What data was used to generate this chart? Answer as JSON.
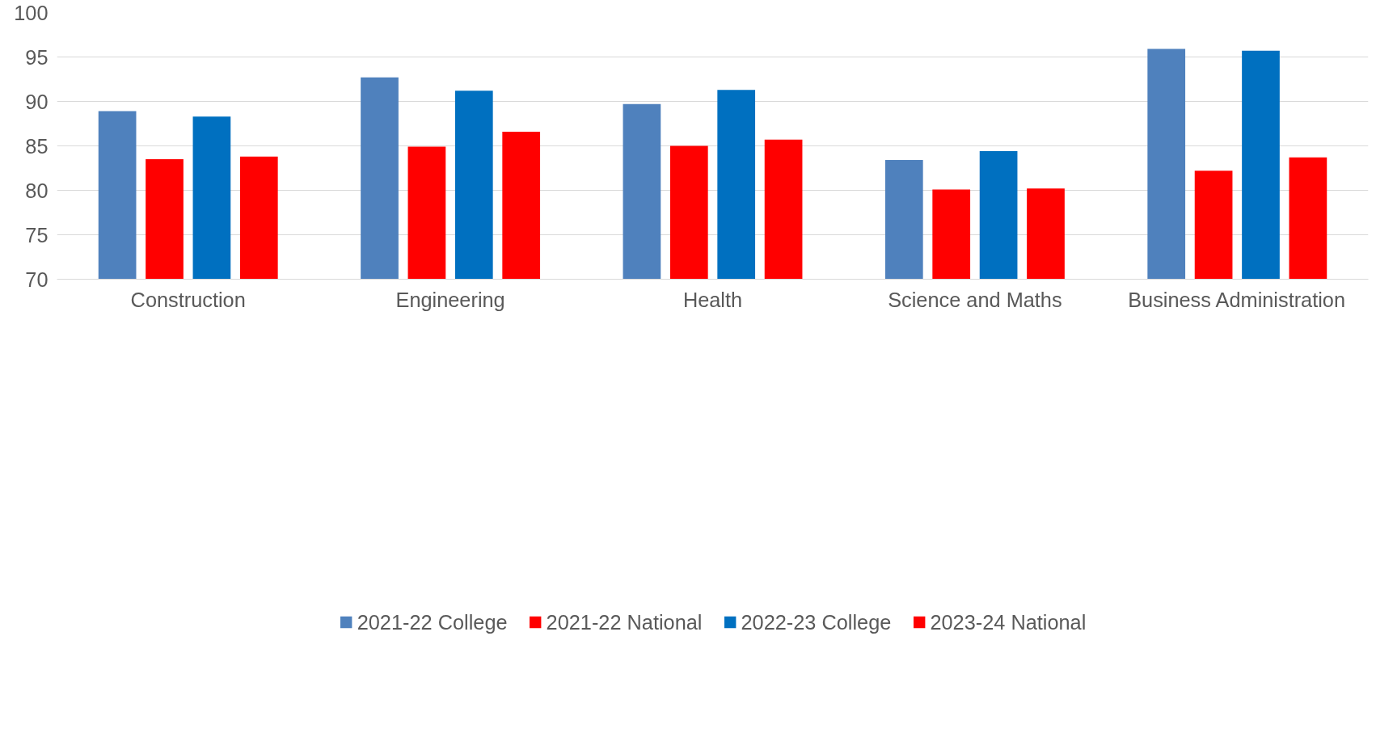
{
  "chart_data": {
    "type": "bar",
    "categories": [
      "Construction",
      "Engineering",
      "Health",
      "Science and Maths",
      "Business Administration"
    ],
    "series": [
      {
        "name": "2021-22 College",
        "color": "#4f81bd",
        "values": [
          88.9,
          92.7,
          89.7,
          83.4,
          95.9
        ]
      },
      {
        "name": "2021-22 National",
        "color": "#ff0000",
        "values": [
          83.5,
          84.9,
          85.0,
          80.1,
          82.2
        ]
      },
      {
        "name": "2022-23 College",
        "color": "#0070c0",
        "values": [
          88.3,
          91.2,
          91.3,
          84.4,
          95.7
        ]
      },
      {
        "name": "2023-24 National",
        "color": "#ff0000",
        "values": [
          83.8,
          86.6,
          85.7,
          80.2,
          83.7
        ]
      }
    ],
    "ylim": [
      70,
      100
    ],
    "yticks": [
      70,
      75,
      80,
      85,
      90,
      95,
      100
    ],
    "grid": "y",
    "legend": "bottom"
  }
}
